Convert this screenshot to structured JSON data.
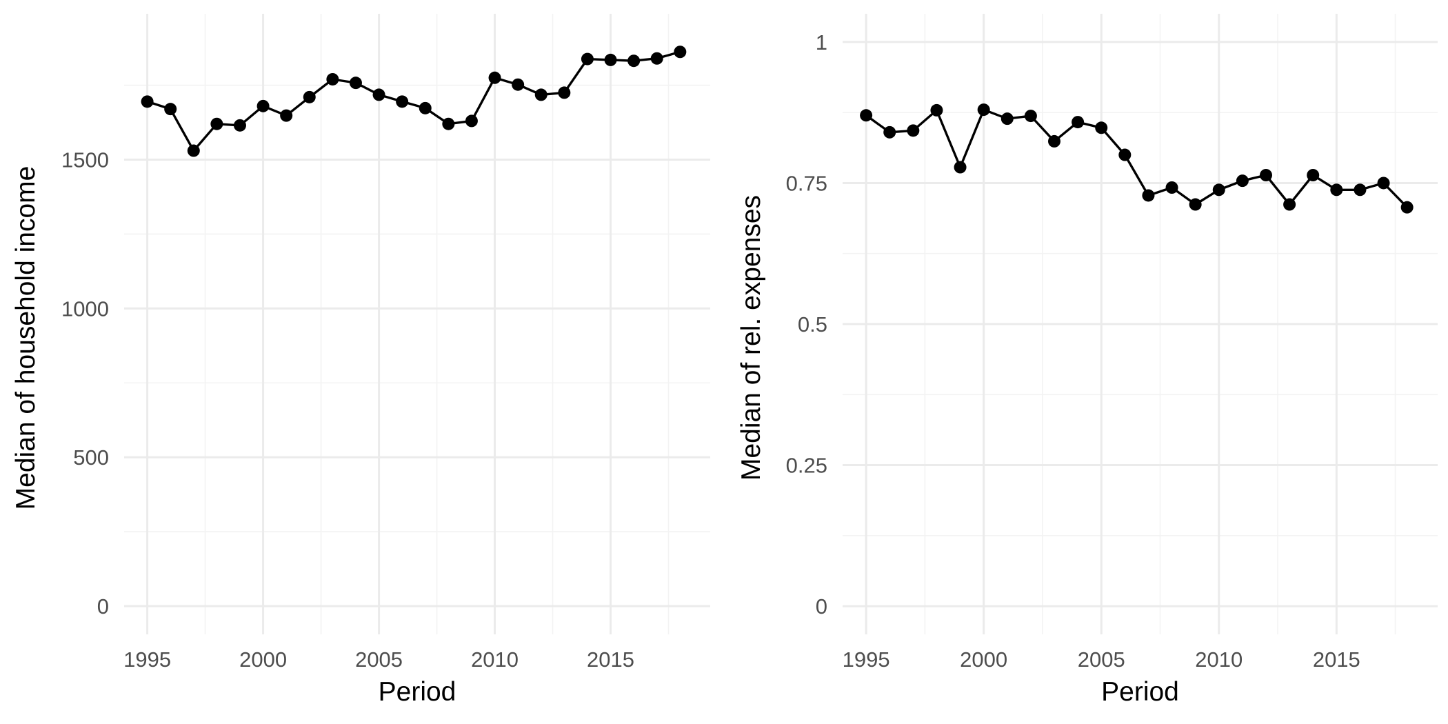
{
  "chart_data": [
    {
      "type": "line",
      "xlabel": "Period",
      "ylabel": "Median of household income",
      "x": [
        1995,
        1996,
        1997,
        1998,
        1999,
        2000,
        2001,
        2002,
        2003,
        2004,
        2005,
        2006,
        2007,
        2008,
        2009,
        2010,
        2011,
        2012,
        2013,
        2014,
        2015,
        2016,
        2017,
        2018
      ],
      "series": [
        {
          "values": [
            1695,
            1670,
            1530,
            1620,
            1615,
            1680,
            1648,
            1710,
            1770,
            1758,
            1718,
            1695,
            1673,
            1620,
            1630,
            1775,
            1752,
            1718,
            1725,
            1838,
            1835,
            1832,
            1840,
            1862
          ],
          "color": "#000000"
        }
      ],
      "xlim": [
        1994,
        2019.3
      ],
      "ylim": [
        -95,
        1990
      ],
      "x_ticks": [
        1995,
        2000,
        2005,
        2010,
        2015
      ],
      "x_tick_labels": [
        "1995",
        "2000",
        "2005",
        "2010",
        "2015"
      ],
      "y_ticks": [
        0,
        500,
        1000,
        1500
      ],
      "y_tick_labels": [
        "0",
        "500",
        "1000",
        "1500"
      ],
      "grid": true
    },
    {
      "type": "line",
      "xlabel": "Period",
      "ylabel": "Median of rel. expenses",
      "x": [
        1995,
        1996,
        1997,
        1998,
        1999,
        2000,
        2001,
        2002,
        2003,
        2004,
        2005,
        2006,
        2007,
        2008,
        2009,
        2010,
        2011,
        2012,
        2013,
        2014,
        2015,
        2016,
        2017,
        2018
      ],
      "series": [
        {
          "values": [
            0.87,
            0.84,
            0.843,
            0.879,
            0.778,
            0.88,
            0.864,
            0.869,
            0.824,
            0.858,
            0.848,
            0.8,
            0.728,
            0.742,
            0.712,
            0.738,
            0.754,
            0.764,
            0.712,
            0.764,
            0.738,
            0.738,
            0.75,
            0.707
          ],
          "color": "#000000"
        }
      ],
      "xlim": [
        1994,
        2019.3
      ],
      "ylim": [
        -0.05,
        1.05
      ],
      "x_ticks": [
        1995,
        2000,
        2005,
        2010,
        2015
      ],
      "x_tick_labels": [
        "1995",
        "2000",
        "2005",
        "2010",
        "2015"
      ],
      "y_ticks": [
        0,
        0.25,
        0.5,
        0.75,
        1
      ],
      "y_tick_labels": [
        "0",
        "0.25",
        "0.5",
        "0.75",
        "1"
      ],
      "grid": true
    }
  ]
}
